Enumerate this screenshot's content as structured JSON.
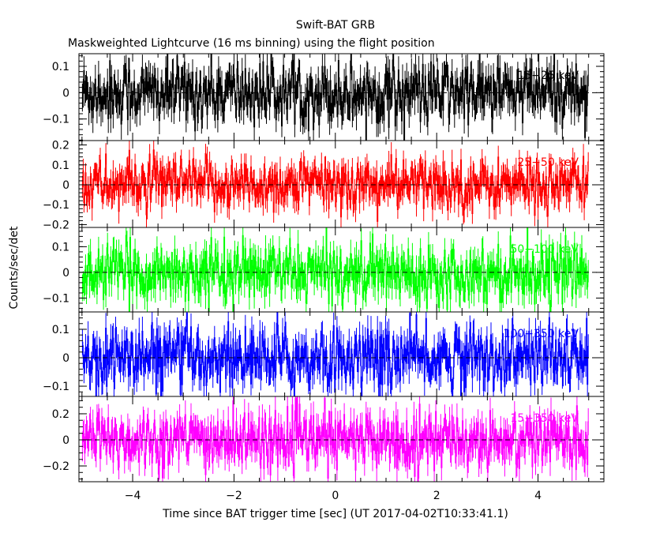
{
  "chart_data": {
    "type": "line",
    "title": "Swift-BAT GRB",
    "subtitle": "Maskweighted Lightcurve (16 ms binning) using the flight position",
    "xlabel": "Time since BAT trigger time [sec] (UT 2017-04-02T10:33:41.1)",
    "ylabel": "Counts/sec/det",
    "xlim": [
      -5.06,
      5.3
    ],
    "x_ticks": [
      -4,
      -2,
      0,
      2,
      4
    ],
    "x_tick_labels": [
      "−4",
      "−2",
      "0",
      "2",
      "4"
    ],
    "bin_width_sec": 0.016,
    "data_range": [
      -5.0,
      5.0
    ],
    "panels": [
      {
        "name": "15−25 keV",
        "color": "#000000",
        "ylim": [
          -0.182,
          0.148
        ],
        "y_ticks": [
          0.1,
          0,
          -0.1
        ],
        "y_tick_labels": [
          "0.1",
          "0",
          "−0.1"
        ],
        "noise_std": 0.06
      },
      {
        "name": "25−50 keV",
        "color": "#ff0000",
        "ylim": [
          -0.214,
          0.222
        ],
        "y_ticks": [
          0.2,
          0.1,
          0,
          -0.1,
          -0.2
        ],
        "y_tick_labels": [
          "0.2",
          "0.1",
          "0",
          "−0.1",
          "−0.2"
        ],
        "noise_std": 0.065
      },
      {
        "name": "50−100 keV",
        "color": "#00ff00",
        "ylim": [
          -0.154,
          0.175
        ],
        "y_ticks": [
          0.1,
          0,
          -0.1
        ],
        "y_tick_labels": [
          "0.1",
          "0",
          "−0.1"
        ],
        "noise_std": 0.055
      },
      {
        "name": "100−350 keV",
        "color": "#0000ff",
        "ylim": [
          -0.136,
          0.161
        ],
        "y_ticks": [
          0.1,
          0,
          -0.1
        ],
        "y_tick_labels": [
          "0.1",
          "0",
          "−0.1"
        ],
        "noise_std": 0.055
      },
      {
        "name": "15−350 keV",
        "color": "#ff00ff",
        "ylim": [
          -0.321,
          0.333
        ],
        "y_ticks": [
          0.2,
          0,
          -0.2
        ],
        "y_tick_labels": [
          "0.2",
          "0",
          "−0.2"
        ],
        "noise_std": 0.11
      }
    ]
  }
}
